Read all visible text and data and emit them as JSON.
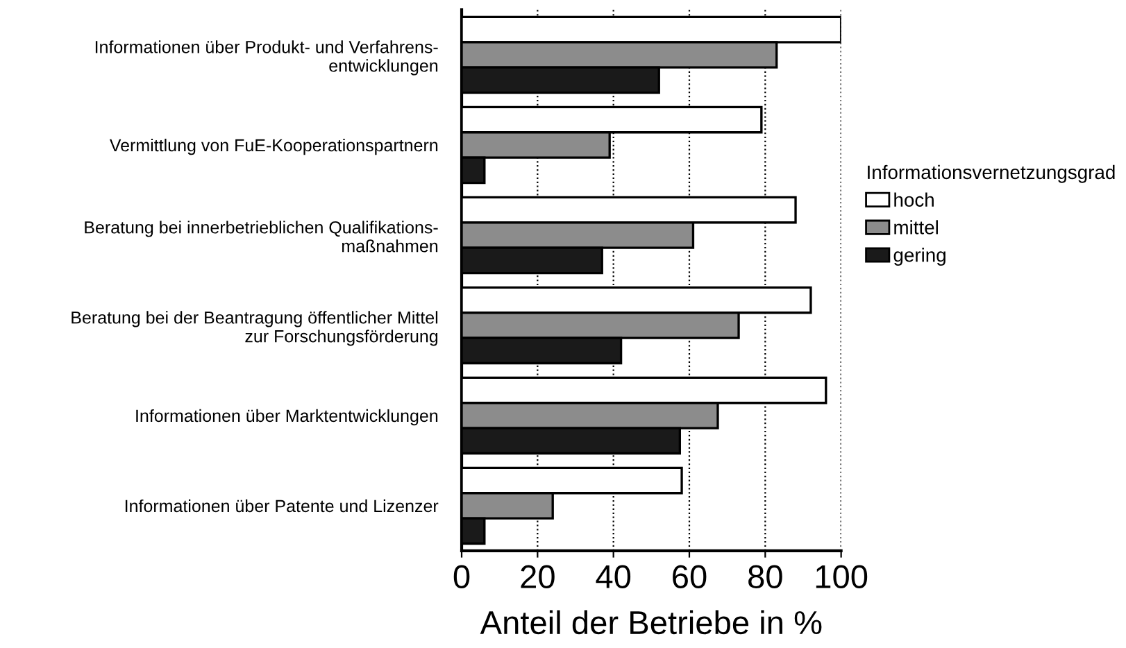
{
  "chart_data": {
    "type": "bar",
    "orientation": "horizontal",
    "categories": [
      "Informationen über Produkt- und Verfahrens-\nentwicklungen",
      "Vermittlung von FuE-Kooperationspartnern",
      "Beratung bei innerbetrieblichen Qualifikations-\nmaßnahmen",
      "Beratung bei der Beantragung öffentlicher Mittel\nzur Forschungsförderung",
      "Informationen über Marktentwicklungen",
      "Informationen über Patente und Lizenzer"
    ],
    "series": [
      {
        "name": "hoch",
        "color": "#ffffff",
        "values": [
          100,
          79,
          88,
          92,
          96,
          58
        ]
      },
      {
        "name": "mittel",
        "color": "#8c8c8c",
        "values": [
          83,
          39,
          61,
          73,
          67.5,
          24
        ]
      },
      {
        "name": "gering",
        "color": "#1a1a1a",
        "values": [
          52,
          6,
          37,
          42,
          57.5,
          6
        ]
      }
    ],
    "xlabel": "Anteil der Betriebe in %",
    "legend_title": "Informationsvernetzungsgrad",
    "xlim": [
      0,
      100
    ],
    "xticks": [
      0,
      20,
      40,
      60,
      80,
      100
    ],
    "grid": "x",
    "legend": "right"
  }
}
